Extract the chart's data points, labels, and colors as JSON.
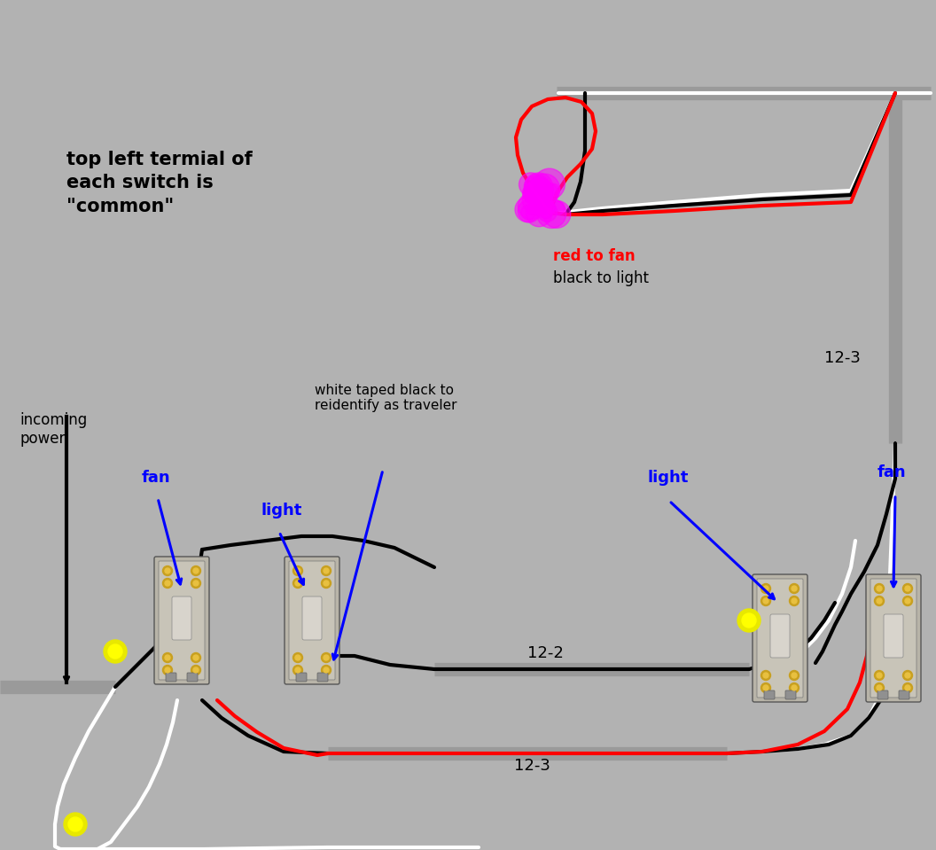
{
  "bg_color": "#b2b2b2",
  "fig_width": 10.56,
  "fig_height": 9.59,
  "dpi": 100,
  "label_common": "top left termial of\neach switch is\n\"common\"",
  "label_incoming": "incoming\npower",
  "label_white_taped": "white taped black to\nreidentify as traveler",
  "label_12_2": "12-2",
  "label_12_3_right": "12-3",
  "label_12_3_bottom": "12-3",
  "label_red_fan": "red to fan",
  "label_black_light": "black to light",
  "label_fan_left": "fan",
  "label_light_left": "light",
  "label_light_right": "light",
  "label_fan_right": "fan"
}
